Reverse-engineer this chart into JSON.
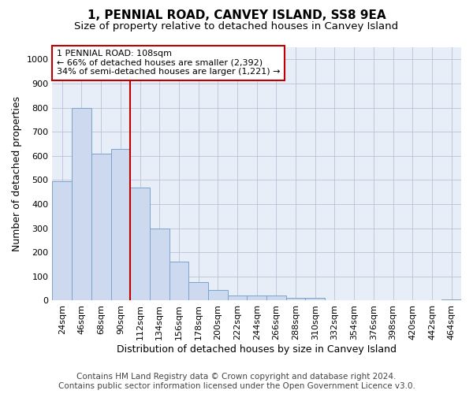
{
  "title": "1, PENNIAL ROAD, CANVEY ISLAND, SS8 9EA",
  "subtitle": "Size of property relative to detached houses in Canvey Island",
  "xlabel": "Distribution of detached houses by size in Canvey Island",
  "ylabel": "Number of detached properties",
  "categories": [
    "24sqm",
    "46sqm",
    "68sqm",
    "90sqm",
    "112sqm",
    "134sqm",
    "156sqm",
    "178sqm",
    "200sqm",
    "222sqm",
    "244sqm",
    "266sqm",
    "288sqm",
    "310sqm",
    "332sqm",
    "354sqm",
    "376sqm",
    "398sqm",
    "420sqm",
    "442sqm",
    "464sqm"
  ],
  "values": [
    495,
    800,
    610,
    630,
    470,
    300,
    160,
    78,
    43,
    22,
    20,
    20,
    12,
    10,
    3,
    3,
    1,
    1,
    1,
    0,
    5
  ],
  "bar_color": "#ccd9ee",
  "bar_edge_color": "#7aa3cc",
  "vline_color": "#c00000",
  "annotation_line1": "1 PENNIAL ROAD: 108sqm",
  "annotation_line2": "← 66% of detached houses are smaller (2,392)",
  "annotation_line3": "34% of semi-detached houses are larger (1,221) →",
  "annotation_box_facecolor": "#ffffff",
  "annotation_box_edgecolor": "#c00000",
  "ylim": [
    0,
    1050
  ],
  "yticks": [
    0,
    100,
    200,
    300,
    400,
    500,
    600,
    700,
    800,
    900,
    1000
  ],
  "bg_color": "#e8eef8",
  "grid_color": "#b0b8d0",
  "title_fontsize": 11,
  "subtitle_fontsize": 9.5,
  "axis_label_fontsize": 9,
  "tick_fontsize": 8,
  "annotation_fontsize": 8,
  "footer_fontsize": 7.5,
  "footer_line1": "Contains HM Land Registry data © Crown copyright and database right 2024.",
  "footer_line2": "Contains public sector information licensed under the Open Government Licence v3.0."
}
